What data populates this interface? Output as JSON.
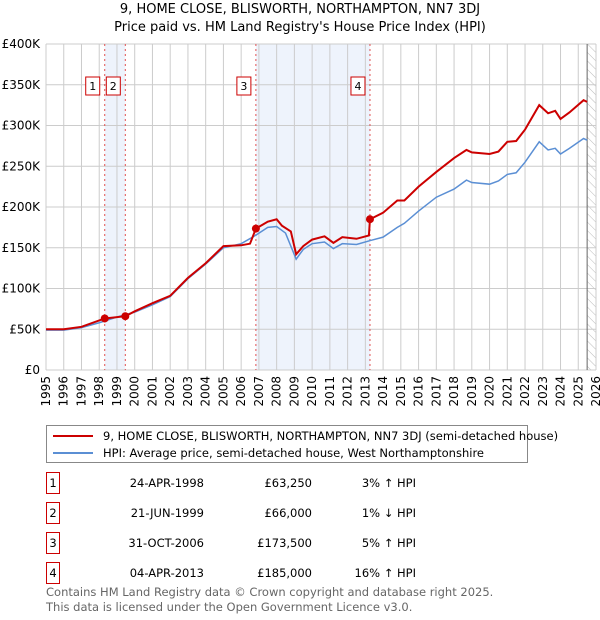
{
  "title": "9, HOME CLOSE, BLISWORTH, NORTHAMPTON, NN7 3DJ",
  "subtitle": "Price paid vs. HM Land Registry's House Price Index (HPI)",
  "colors": {
    "property": "#cc0000",
    "hpi": "#5b8fd4",
    "shade": "#eef3fc"
  },
  "chart_data": {
    "type": "line",
    "title": "9, HOME CLOSE, BLISWORTH, NORTHAMPTON, NN7 3DJ - Price paid vs. HM Land Registry's House Price Index (HPI)",
    "xlim": [
      1995,
      2026
    ],
    "ylim": [
      0,
      400000
    ],
    "x_ticks": [
      "1995",
      "1996",
      "1997",
      "1998",
      "1999",
      "2000",
      "2001",
      "2002",
      "2003",
      "2004",
      "2005",
      "2006",
      "2007",
      "2008",
      "2009",
      "2010",
      "2011",
      "2012",
      "2013",
      "2014",
      "2015",
      "2016",
      "2017",
      "2018",
      "2019",
      "2020",
      "2021",
      "2022",
      "2023",
      "2024",
      "2025",
      "2026"
    ],
    "y_ticks": [
      {
        "v": 0,
        "label": "£0"
      },
      {
        "v": 50000,
        "label": "£50K"
      },
      {
        "v": 100000,
        "label": "£100K"
      },
      {
        "v": 150000,
        "label": "£150K"
      },
      {
        "v": 200000,
        "label": "£200K"
      },
      {
        "v": 250000,
        "label": "£250K"
      },
      {
        "v": 300000,
        "label": "£300K"
      },
      {
        "v": 350000,
        "label": "£350K"
      },
      {
        "v": 400000,
        "label": "£400K"
      }
    ],
    "grid": true,
    "shaded_ranges": [
      [
        1998.31,
        1999.47
      ],
      [
        2006.83,
        2013.26
      ]
    ],
    "forecast_from": 2025.5,
    "series": [
      {
        "name": "9, HOME CLOSE, BLISWORTH, NORTHAMPTON, NN7 3DJ (semi-detached house)",
        "color": "#cc0000",
        "points": [
          [
            1995,
            50
          ],
          [
            1996,
            50
          ],
          [
            1997,
            53
          ],
          [
            1998.31,
            63.25
          ],
          [
            1999.47,
            66
          ],
          [
            2000,
            72
          ],
          [
            2001,
            82
          ],
          [
            2002,
            91
          ],
          [
            2003,
            113
          ],
          [
            2004,
            131
          ],
          [
            2005,
            152
          ],
          [
            2006,
            153
          ],
          [
            2006.5,
            155
          ],
          [
            2006.83,
            173.5
          ],
          [
            2007.5,
            182
          ],
          [
            2008,
            185
          ],
          [
            2008.3,
            177
          ],
          [
            2008.8,
            170
          ],
          [
            2009.1,
            142
          ],
          [
            2009.5,
            152
          ],
          [
            2010,
            160
          ],
          [
            2010.7,
            164
          ],
          [
            2011.2,
            156
          ],
          [
            2011.7,
            163
          ],
          [
            2012.5,
            161
          ],
          [
            2013.2,
            165
          ],
          [
            2013.26,
            185
          ],
          [
            2014,
            193
          ],
          [
            2014.8,
            208
          ],
          [
            2015.2,
            208
          ],
          [
            2016,
            225
          ],
          [
            2017,
            243
          ],
          [
            2018,
            260
          ],
          [
            2018.7,
            270
          ],
          [
            2019,
            267
          ],
          [
            2020,
            265
          ],
          [
            2020.5,
            268
          ],
          [
            2021,
            280
          ],
          [
            2021.5,
            281
          ],
          [
            2022,
            295
          ],
          [
            2022.8,
            325
          ],
          [
            2023.3,
            315
          ],
          [
            2023.7,
            318
          ],
          [
            2024,
            308
          ],
          [
            2024.5,
            316
          ],
          [
            2025.3,
            331
          ],
          [
            2025.5,
            329
          ]
        ]
      },
      {
        "name": "HPI: Average price, semi-detached house, West Northamptonshire",
        "color": "#5b8fd4",
        "points": [
          [
            1995,
            49
          ],
          [
            1996,
            49
          ],
          [
            1997,
            52
          ],
          [
            1998,
            58
          ],
          [
            1999,
            65
          ],
          [
            2000,
            71
          ],
          [
            2001,
            80
          ],
          [
            2002,
            90
          ],
          [
            2003,
            112
          ],
          [
            2004,
            130
          ],
          [
            2005,
            150
          ],
          [
            2006,
            155
          ],
          [
            2006.8,
            165
          ],
          [
            2007.5,
            175
          ],
          [
            2008,
            176
          ],
          [
            2008.5,
            168
          ],
          [
            2009.1,
            136
          ],
          [
            2009.5,
            148
          ],
          [
            2010,
            155
          ],
          [
            2010.7,
            157
          ],
          [
            2011.2,
            149
          ],
          [
            2011.7,
            155
          ],
          [
            2012.5,
            154
          ],
          [
            2013.3,
            159
          ],
          [
            2014,
            163
          ],
          [
            2014.8,
            175
          ],
          [
            2015.2,
            180
          ],
          [
            2016,
            195
          ],
          [
            2017,
            212
          ],
          [
            2018,
            222
          ],
          [
            2018.7,
            233
          ],
          [
            2019,
            230
          ],
          [
            2020,
            228
          ],
          [
            2020.5,
            232
          ],
          [
            2021,
            240
          ],
          [
            2021.5,
            242
          ],
          [
            2022,
            255
          ],
          [
            2022.8,
            280
          ],
          [
            2023.3,
            270
          ],
          [
            2023.7,
            272
          ],
          [
            2024,
            265
          ],
          [
            2024.5,
            272
          ],
          [
            2025.3,
            284
          ],
          [
            2025.5,
            282
          ]
        ]
      }
    ],
    "sales": [
      {
        "label": "1",
        "x": 1998.31,
        "price": 63250
      },
      {
        "label": "2",
        "x": 1999.47,
        "price": 66000
      },
      {
        "label": "3",
        "x": 2006.83,
        "price": 173500
      },
      {
        "label": "4",
        "x": 2013.26,
        "price": 185000
      }
    ]
  },
  "legend": {
    "property": "9, HOME CLOSE, BLISWORTH, NORTHAMPTON, NN7 3DJ (semi-detached house)",
    "hpi": "HPI: Average price, semi-detached house, West Northamptonshire"
  },
  "transactions": [
    {
      "num": "1",
      "date": "24-APR-1998",
      "price": "£63,250",
      "hpi": "3% ↑ HPI"
    },
    {
      "num": "2",
      "date": "21-JUN-1999",
      "price": "£66,000",
      "hpi": "1% ↓ HPI"
    },
    {
      "num": "3",
      "date": "31-OCT-2006",
      "price": "£173,500",
      "hpi": "5% ↑ HPI"
    },
    {
      "num": "4",
      "date": "04-APR-2013",
      "price": "£185,000",
      "hpi": "16% ↑ HPI"
    }
  ],
  "footer": [
    "Contains HM Land Registry data © Crown copyright and database right 2025.",
    "This data is licensed under the Open Government Licence v3.0."
  ]
}
